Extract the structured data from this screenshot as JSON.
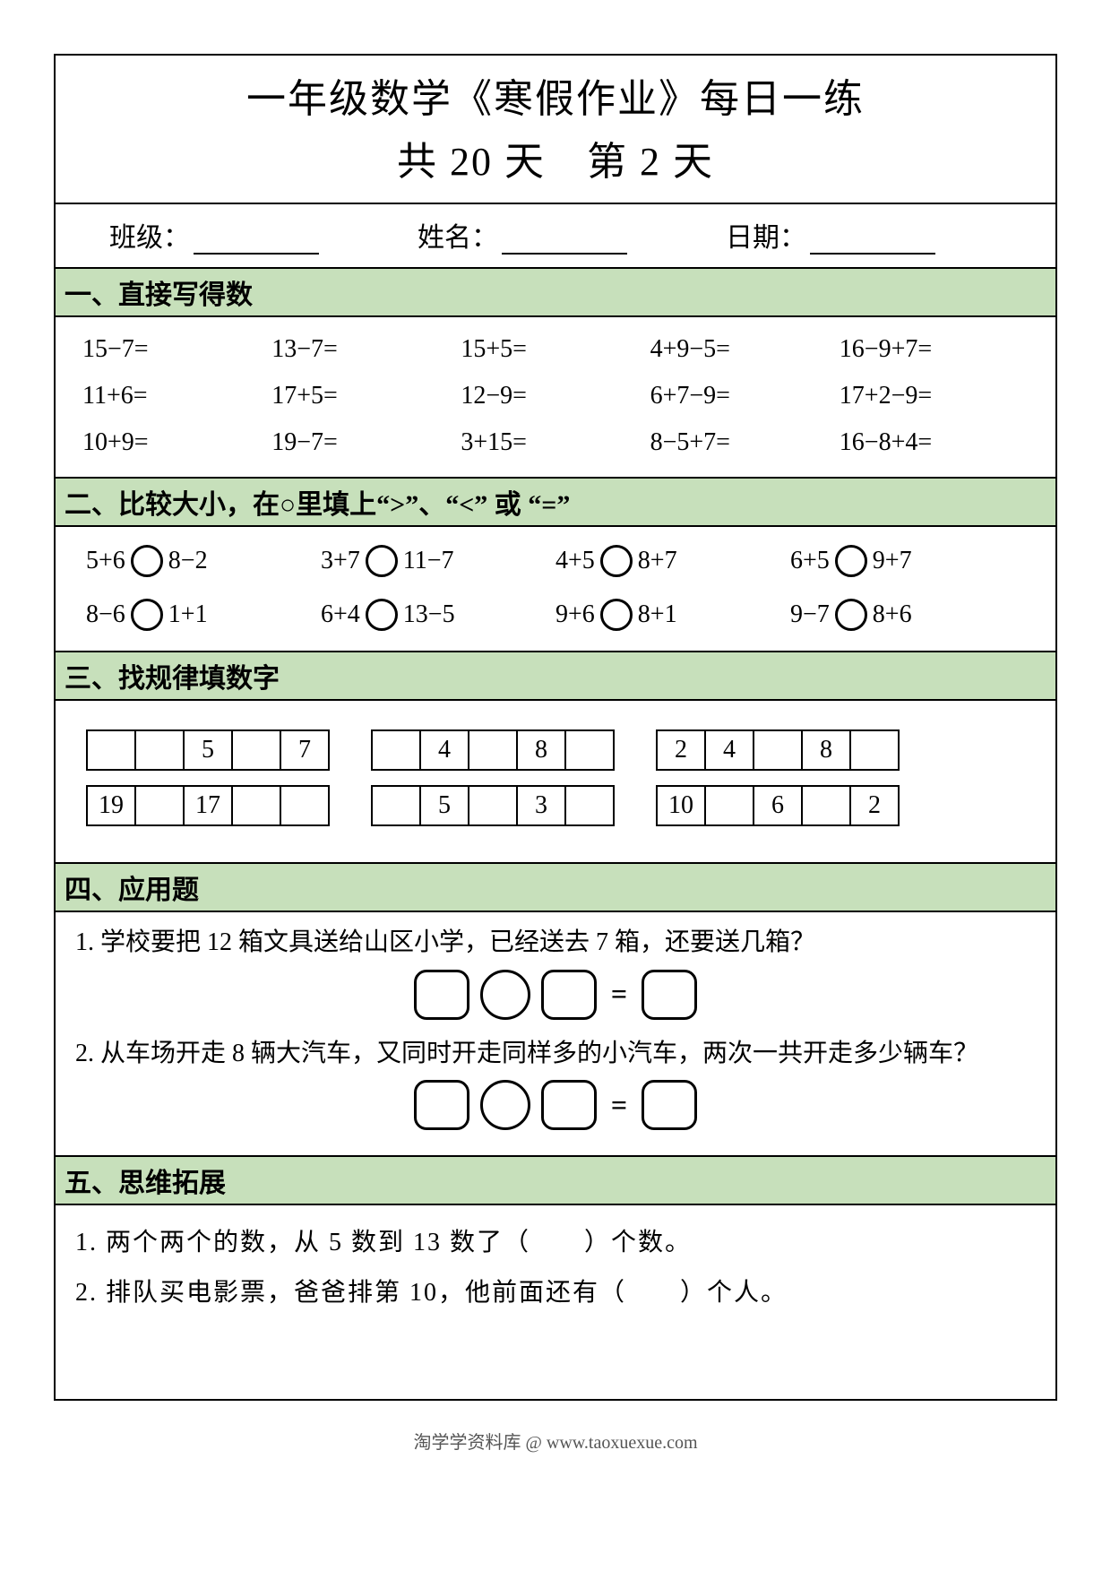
{
  "title": {
    "line1": "一年级数学《寒假作业》每日一练",
    "line2": "共 20 天　第 2 天"
  },
  "info_labels": {
    "class": "班级：",
    "name": "姓名：",
    "date": "日期："
  },
  "sections": {
    "s1": {
      "header": "一、直接写得数",
      "items": [
        "15−7=",
        "13−7=",
        "15+5=",
        "4+9−5=",
        "16−9+7=",
        "11+6=",
        "17+5=",
        "12−9=",
        "6+7−9=",
        "17+2−9=",
        "10+9=",
        "19−7=",
        "3+15=",
        "8−5+7=",
        "16−8+4="
      ]
    },
    "s2": {
      "header": "二、比较大小，在○里填上“>”、“<” 或 “=”",
      "pairs": [
        [
          "5+6",
          "8−2"
        ],
        [
          "3+7",
          "11−7"
        ],
        [
          "4+5",
          "8+7"
        ],
        [
          "6+5",
          "9+7"
        ],
        [
          "8−6",
          "1+1"
        ],
        [
          "6+4",
          "13−5"
        ],
        [
          "9+6",
          "8+1"
        ],
        [
          "9−7",
          "8+6"
        ]
      ]
    },
    "s3": {
      "header": "三、找规律填数字",
      "rows": [
        [
          [
            "",
            "",
            "5",
            "",
            "7"
          ],
          [
            "",
            "4",
            "",
            "8",
            ""
          ],
          [
            "2",
            "4",
            "",
            "8",
            ""
          ]
        ],
        [
          [
            "19",
            "",
            "17",
            "",
            ""
          ],
          [
            "",
            "5",
            "",
            "3",
            ""
          ],
          [
            "10",
            "",
            "6",
            "",
            "2"
          ]
        ]
      ]
    },
    "s4": {
      "header": "四、应用题",
      "q1": "1. 学校要把 12 箱文具送给山区小学，已经送去 7 箱，还要送几箱？",
      "q2": "2. 从车场开走 8 辆大汽车，又同时开走同样多的小汽车，两次一共开走多少辆车？",
      "eq_sign": "="
    },
    "s5": {
      "header": "五、思维拓展",
      "q1": "1. 两个两个的数，从 5 数到 13 数了（　　）个数。",
      "q2": "2. 排队买电影票，爸爸排第 10，他前面还有（　　）个人。"
    }
  },
  "footer": "淘学学资料库 @ www.taoxuexue.com",
  "colors": {
    "section_bg": "#c7e0bb",
    "border": "#000000",
    "text": "#000000"
  }
}
